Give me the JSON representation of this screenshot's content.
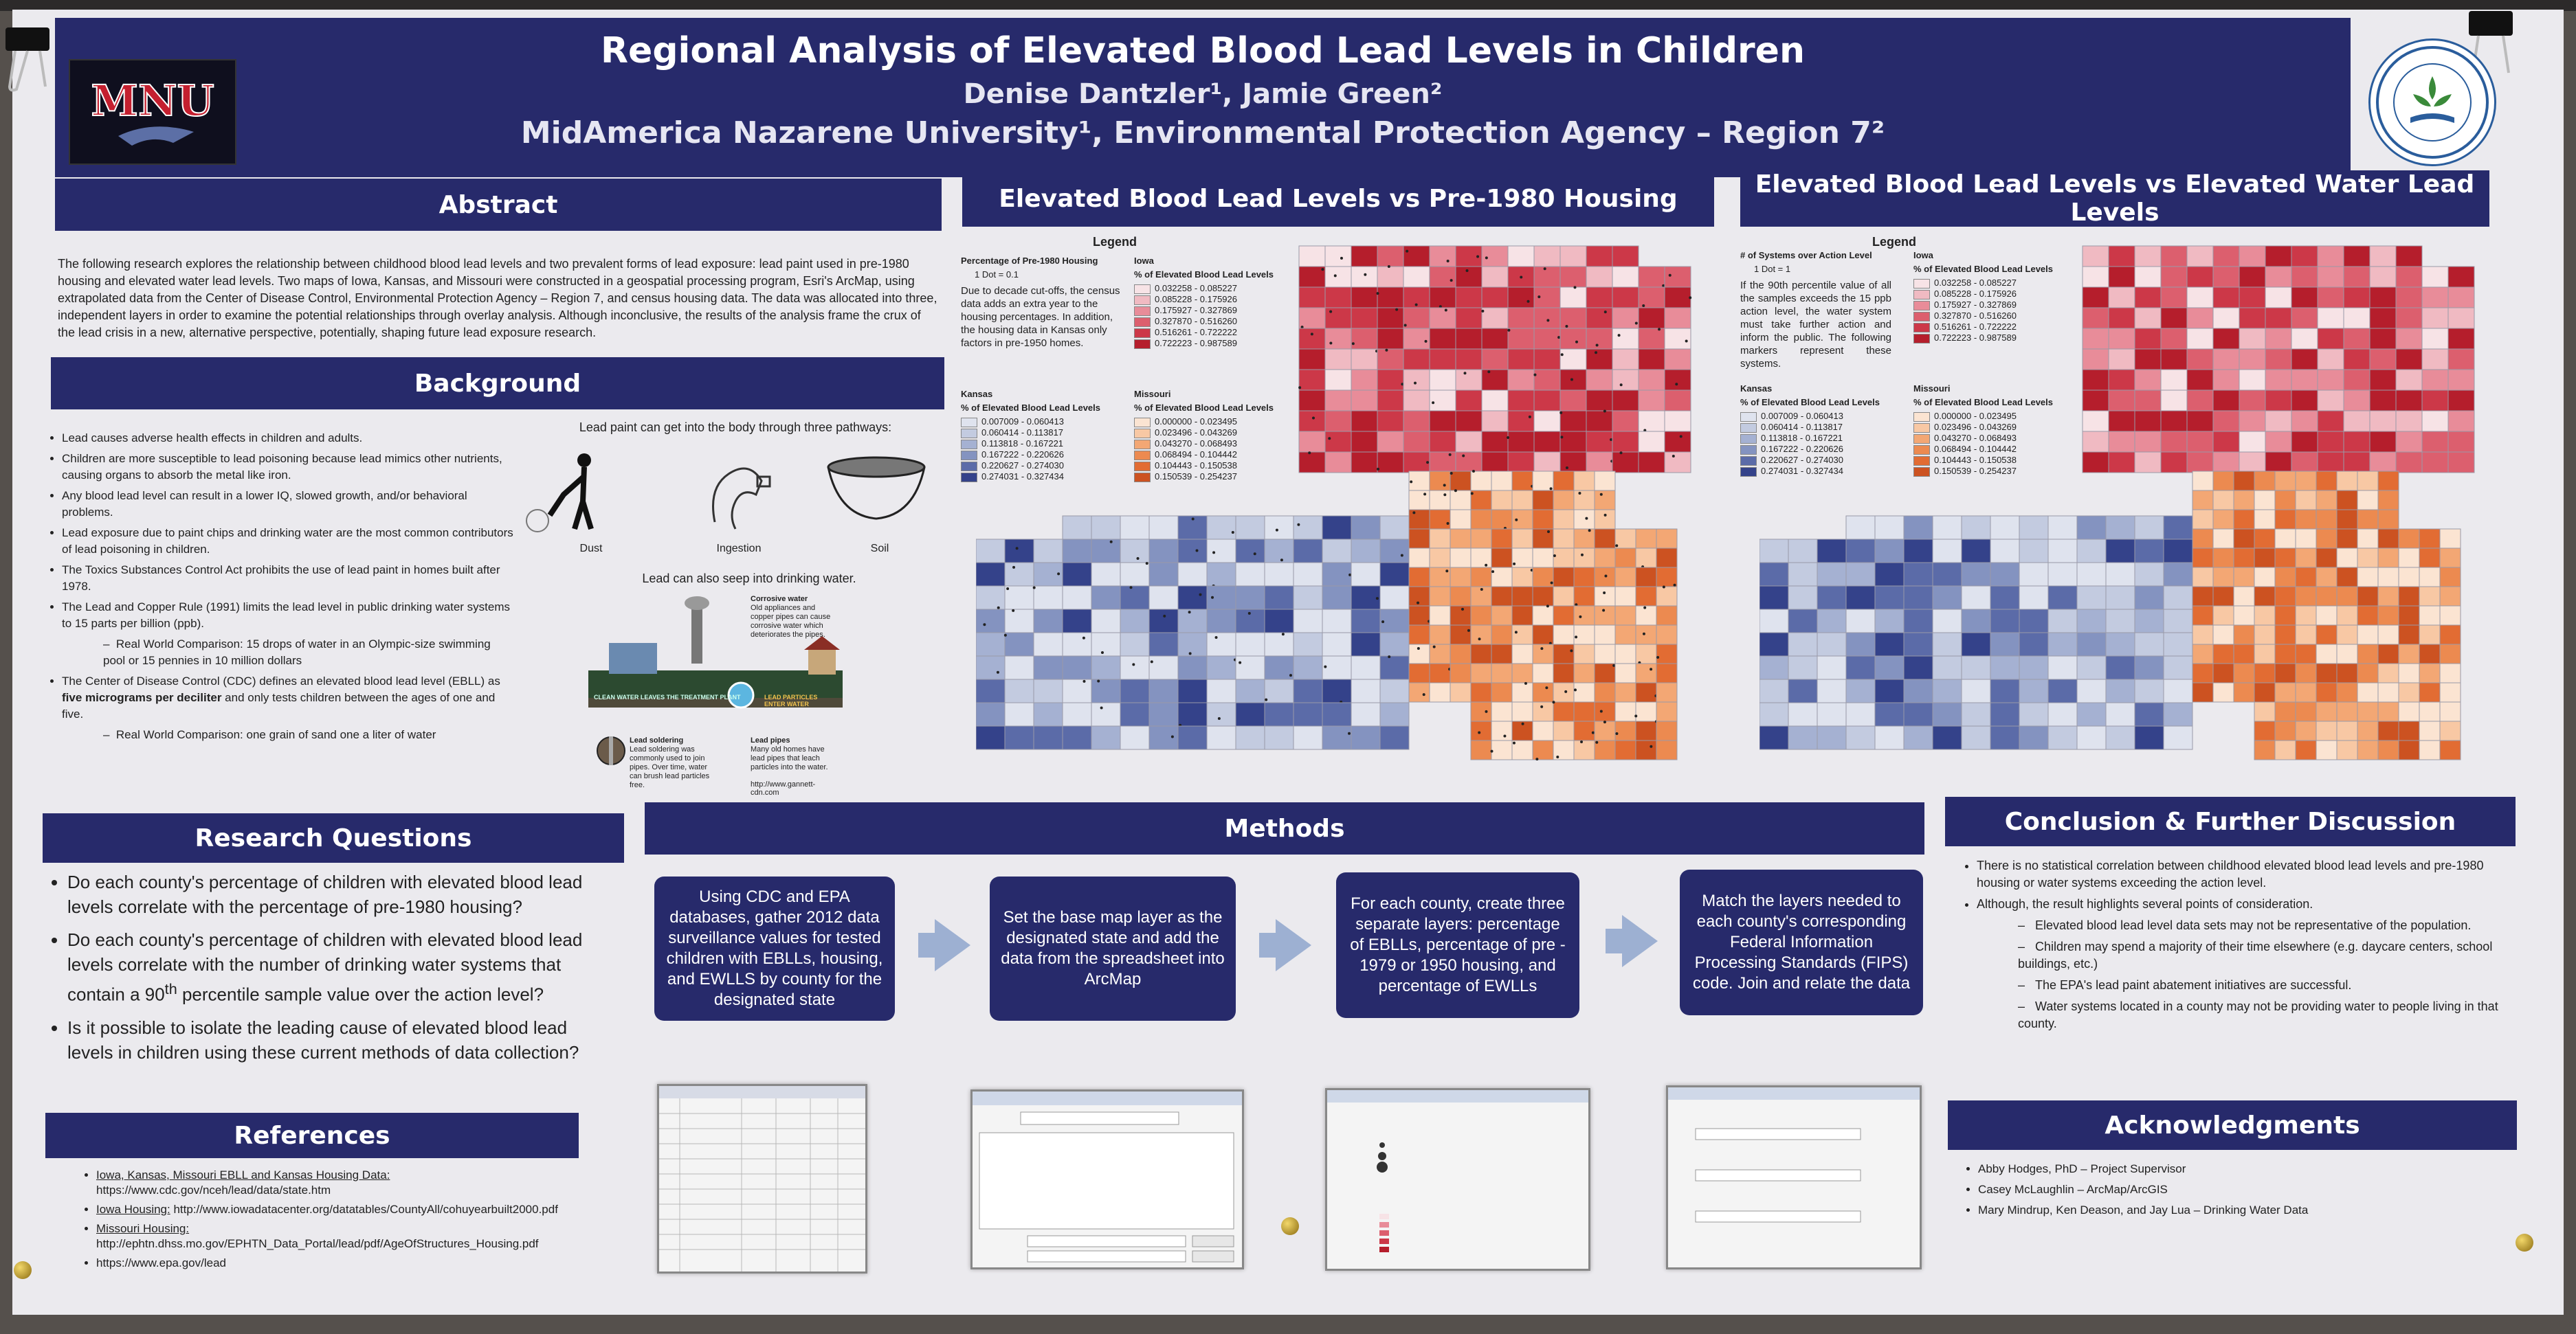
{
  "header": {
    "title": "Regional Analysis of Elevated Blood Lead Levels in Children",
    "authors": "Denise Dantzler¹, Jamie Green²",
    "affiliations": "MidAmerica Nazarene University¹, Environmental Protection Agency – Region 7²"
  },
  "logos": {
    "left_text": "MNU",
    "right_text": "UNITED STATES ENVIRONMENTAL PROTECTION AGENCY"
  },
  "abstract": {
    "heading": "Abstract",
    "text": "The following research explores the relationship between childhood blood lead levels and two prevalent forms of lead exposure: lead paint used in pre-1980 housing and elevated water lead levels. Two maps of Iowa, Kansas, and Missouri were constructed in a geospatial processing program, Esri's ArcMap, using extrapolated data from the Center of Disease Control, Environmental Protection Agency – Region 7, and census housing data. The data was allocated into three, independent layers in order to examine the potential relationships through overlay analysis. Although inconclusive, the results of the analysis frame the crux of the lead crisis in a new, alternative perspective, potentially, shaping future lead exposure research."
  },
  "background": {
    "heading": "Background",
    "bullets": [
      "Lead causes adverse health effects in children and adults.",
      "Children are more susceptible to lead poisoning because lead mimics other nutrients, causing organs to absorb the metal like iron.",
      "Any blood lead level can result in a lower IQ, slowed growth, and/or behavioral problems.",
      "Lead exposure due to paint chips and drinking water are the most common contributors of lead poisoning in children.",
      "The Toxics Substances Control Act prohibits the use of lead paint in homes built after 1978.",
      "The Lead and Copper Rule (1991) limits the lead level in public drinking water systems to 15 parts per billion (ppb)."
    ],
    "sub1": "Real World Comparison: 15 drops of water in an Olympic-size swimming pool or 15 pennies in 10 million dollars",
    "bullet_cdc_pre": "The Center of Disease Control (CDC) defines an elevated blood lead level (EBLL) as ",
    "bullet_cdc_bold": "five micrograms per deciliter",
    "bullet_cdc_post": " and only tests children between the ages of one and five.",
    "sub2": "Real World Comparison: one grain of sand one a liter of water",
    "paint_caption": "Lead paint can get into the body through three pathways:",
    "icons": [
      "Dust",
      "Ingestion",
      "Soil"
    ],
    "seep_caption": "Lead can also seep into drinking water.",
    "diagram": {
      "corrosive_title": "Corrosive water",
      "corrosive_text": "Old appliances and copper pipes can cause corrosive water which deteriorates the pipes.",
      "clean_label": "CLEAN WATER LEAVES THE TREATMENT PLANT",
      "lead_label": "LEAD PARTICLES ENTER WATER",
      "solder_title": "Lead soldering",
      "solder_text": "Lead soldering was commonly used to join pipes. Over time, water can brush lead particles free.",
      "pipes_title": "Lead pipes",
      "pipes_text": "Many old homes have lead pipes that leach particles into the water.",
      "source": "http://www.gannett-cdn.com"
    }
  },
  "research": {
    "heading": "Research Questions",
    "q1": "Do each county's percentage of children with elevated blood lead levels correlate with the percentage of pre-1980 housing?",
    "q2_pre": "Do each county's percentage of children with elevated blood lead levels  correlate with the number of drinking water systems that contain a 90",
    "q2_sup": "th",
    "q2_post": " percentile sample value over the action level?",
    "q3": "Is it possible to isolate the leading cause of elevated blood lead levels in children using these current methods of data collection?"
  },
  "references": {
    "heading": "References",
    "items": [
      {
        "label": "Iowa, Kansas, Missouri EBLL and Kansas Housing Data:",
        "url": " https://www.cdc.gov/nceh/lead/data/state.htm"
      },
      {
        "label": "Iowa Housing:",
        "url": " http://www.iowadatacenter.org/datatables/CountyAll/cohuyearbuilt2000.pdf"
      },
      {
        "label": "Missouri Housing:",
        "url": " http://ephtn.dhss.mo.gov/EPHTN_Data_Portal/lead/pdf/AgeOfStructures_Housing.pdf"
      },
      {
        "label": "",
        "url": "https://www.epa.gov/lead"
      }
    ]
  },
  "map1": {
    "heading": "Elevated Blood Lead Levels vs Pre-1980 Housing",
    "legend_title": "Legend",
    "pct_label": "Percentage of Pre-1980 Housing",
    "dot_label": "1 Dot = 0.1",
    "note": "Due to decade cut-offs, the census data adds an extra year to the housing percentages. In addition, the housing data in Kansas only factors in pre-1950 homes."
  },
  "map2": {
    "heading": "Elevated Blood Lead Levels vs Elevated Water Lead Levels",
    "legend_title": "Legend",
    "pct_label": "# of Systems over Action Level",
    "dot_label": "1 Dot = 1",
    "note": "If the 90th percentile value of all the samples exceeds the 15 ppb action level, the water system must take further action and inform the public. The following markers represent these systems."
  },
  "legend_common": {
    "kansas": "Kansas",
    "iowa": "Iowa",
    "missouri": "Missouri",
    "ebll": "% of Elevated Blood Lead Levels",
    "kansas_ranges": [
      "0.007009 - 0.060413",
      "0.060414 - 0.113817",
      "0.113818 - 0.167221",
      "0.167222 - 0.220626",
      "0.220627 - 0.274030",
      "0.274031 - 0.327434"
    ],
    "iowa_ranges": [
      "0.032258 - 0.085227",
      "0.085228 - 0.175926",
      "0.175927 - 0.327869",
      "0.327870 - 0.516260",
      "0.516261 - 0.722222",
      "0.722223 - 0.987589"
    ],
    "missouri_ranges": [
      "0.000000 - 0.023495",
      "0.023496 - 0.043269",
      "0.043270 - 0.068493",
      "0.068494 - 0.104442",
      "0.104443 - 0.150538",
      "0.150539 - 0.254237"
    ],
    "kansas_colors": [
      "#dfe3ee",
      "#c3cbe0",
      "#a5b1d2",
      "#8493c0",
      "#5b6ba8",
      "#34428a"
    ],
    "iowa_colors": [
      "#f7e3e6",
      "#f0bac2",
      "#e88c99",
      "#dc5f6e",
      "#cc3848",
      "#b51e2c"
    ],
    "missouri_colors": [
      "#fbe4d2",
      "#f8c8a4",
      "#f3a774",
      "#ec8a50",
      "#e26c33",
      "#cc5221"
    ]
  },
  "methods": {
    "heading": "Methods",
    "steps": [
      "Using CDC and EPA databases, gather 2012 data surveillance values for tested children with EBLLs, housing, and EWLLS by county for the designated state",
      "Set the base map layer as the designated state and add the data from the spreadsheet into ArcMap",
      "For each county, create three separate layers: percentage of EBLLs, percentage of pre - 1979 or 1950 housing, and percentage of EWLLs",
      "Match the layers needed to each county's corresponding Federal Information Processing Standards (FIPS) code. Join and relate the data"
    ]
  },
  "conclusion": {
    "heading": "Conclusion & Further Discussion",
    "b1": "There is no statistical correlation between childhood elevated blood lead levels and pre-1980 housing or water systems exceeding the action level.",
    "b2": "Although, the result highlights several points of consideration.",
    "subs": [
      "Elevated blood lead level data sets may not be representative of the population.",
      "Children may spend a majority of their time elsewhere (e.g. daycare centers, school buildings, etc.)",
      "The EPA's lead paint abatement initiatives are successful.",
      "Water systems located in a county may not be providing water to people living in that county."
    ]
  },
  "acknowledgments": {
    "heading": "Acknowledgments",
    "items": [
      "Abby Hodges, PhD – Project Supervisor",
      "Casey McLaughlin – ArcMap/ArcGIS",
      "Mary Mindrup, Ken Deason, and Jay Lua – Drinking Water Data"
    ]
  }
}
